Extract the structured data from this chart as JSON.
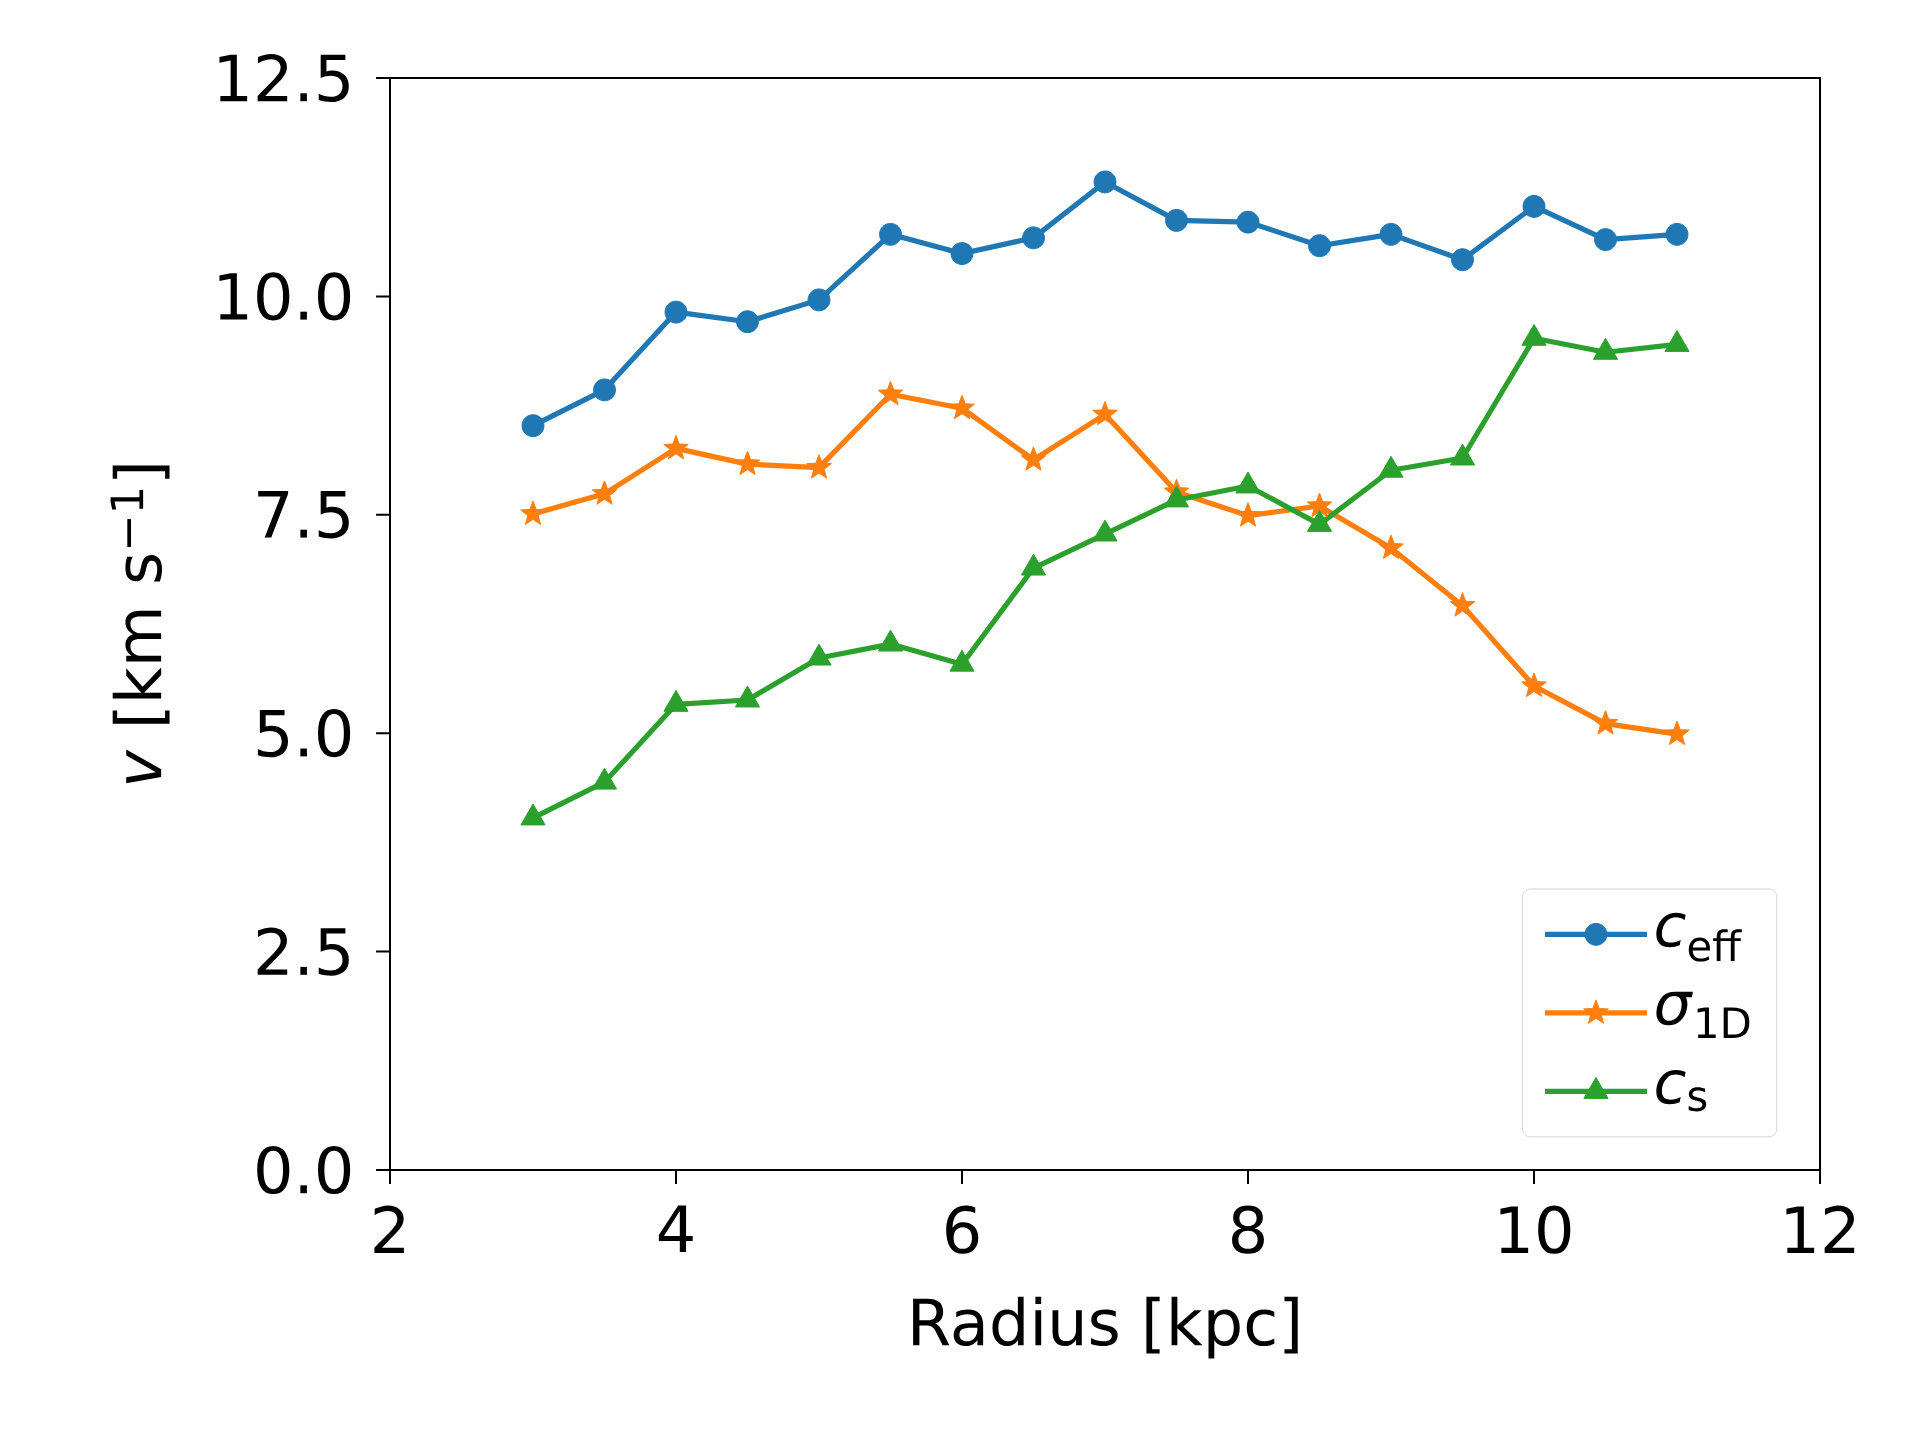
{
  "chart_data": {
    "type": "line",
    "xlabel": "Radius [kpc]",
    "ylabel": "*v* [km s$^{−1}$]",
    "x": [
      3,
      3.5,
      4,
      4.5,
      5,
      5.5,
      6,
      6.5,
      7,
      7.5,
      8,
      8.5,
      9,
      9.5,
      10,
      10.5,
      11
    ],
    "series": [
      {
        "name": "*c*$_{eff}$",
        "color": "#1f77b4",
        "marker": "circle",
        "values": [
          8.52,
          8.93,
          9.82,
          9.71,
          9.96,
          10.71,
          10.49,
          10.67,
          11.31,
          10.87,
          10.85,
          10.58,
          10.71,
          10.42,
          11.03,
          10.65,
          10.71
        ]
      },
      {
        "name": "*σ*$_{1D}$",
        "color": "#ff7f0e",
        "marker": "star",
        "values": [
          7.51,
          7.74,
          8.26,
          8.08,
          8.04,
          8.88,
          8.72,
          8.13,
          8.65,
          7.76,
          7.49,
          7.6,
          7.12,
          6.46,
          5.54,
          5.11,
          4.99
        ]
      },
      {
        "name": "*c*$_{s}$",
        "color": "#2ca02c",
        "marker": "triangle",
        "values": [
          4.03,
          4.44,
          5.33,
          5.38,
          5.86,
          6.02,
          5.79,
          6.89,
          7.28,
          7.67,
          7.83,
          7.39,
          8.01,
          8.15,
          9.52,
          9.36,
          9.45
        ]
      }
    ],
    "xlim": [
      2,
      12
    ],
    "xticks": [
      2,
      4,
      6,
      8,
      10,
      12
    ],
    "ylim": [
      0,
      12.5
    ],
    "yticks": [
      {
        "value": 0,
        "label": "0.0"
      },
      {
        "value": 2.5,
        "label": "2.5"
      },
      {
        "value": 5,
        "label": "5.0"
      },
      {
        "value": 7.5,
        "label": "7.5"
      },
      {
        "value": 10,
        "label": "10.0"
      },
      {
        "value": 12.5,
        "label": "12.5"
      }
    ],
    "grid": false,
    "legend": "bottom right",
    "line_style": "solid"
  }
}
